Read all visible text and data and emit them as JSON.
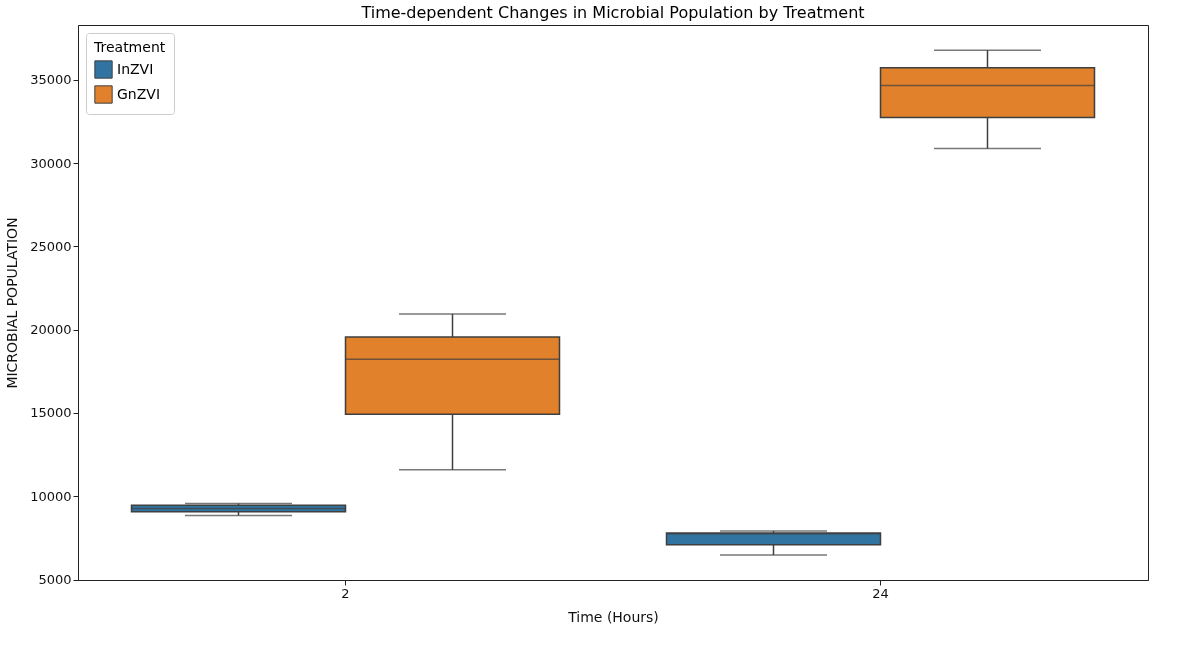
{
  "chart_data": {
    "type": "box",
    "title": "Time-dependent Changes in Microbial Population by Treatment",
    "xlabel": "Time (Hours)",
    "ylabel": "MICROBIAL POPULATION",
    "legend_title": "Treatment",
    "categories": [
      "2",
      "24"
    ],
    "series": [
      {
        "name": "InZVI",
        "color": "#3274a1",
        "boxes": [
          {
            "low": 8850,
            "q1": 9070,
            "median": 9270,
            "q3": 9460,
            "high": 9560
          },
          {
            "low": 6470,
            "q1": 7080,
            "median": 7750,
            "q3": 7800,
            "high": 7910
          }
        ]
      },
      {
        "name": "GnZVI",
        "color": "#e1812c",
        "boxes": [
          {
            "low": 11590,
            "q1": 14920,
            "median": 18230,
            "q3": 19560,
            "high": 20950
          },
          {
            "low": 30890,
            "q1": 32750,
            "median": 34670,
            "q3": 35730,
            "high": 36780
          }
        ]
      }
    ],
    "ylim": [
      4970,
      38300
    ],
    "yticks": [
      5000,
      10000,
      15000,
      20000,
      25000,
      30000,
      35000
    ],
    "grid": false,
    "legend": "top left"
  }
}
